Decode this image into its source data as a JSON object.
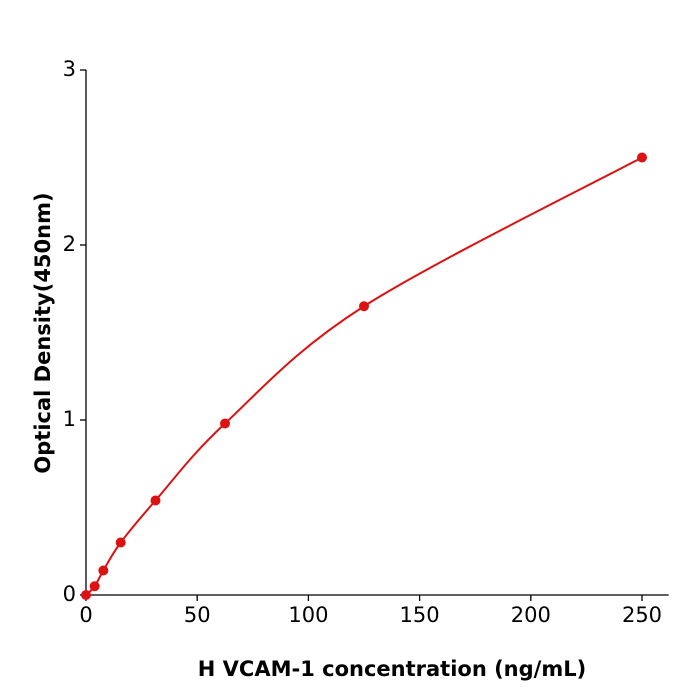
{
  "chart_data": {
    "type": "line",
    "markers": true,
    "xlabel": "H  VCAM-1 concentration (ng/mL)",
    "ylabel": "Optical Density(450nm)",
    "x": [
      0,
      3.9,
      7.8,
      15.6,
      31.25,
      62.5,
      125,
      250
    ],
    "values": [
      0,
      0.05,
      0.14,
      0.3,
      0.54,
      0.98,
      1.65,
      2.5
    ],
    "color": "#dd1111",
    "xlim": [
      0,
      262
    ],
    "xticks": [
      0,
      50,
      100,
      150,
      200,
      250
    ],
    "ylim": [
      0,
      3
    ],
    "yticks": [
      0,
      1,
      2,
      3
    ]
  }
}
